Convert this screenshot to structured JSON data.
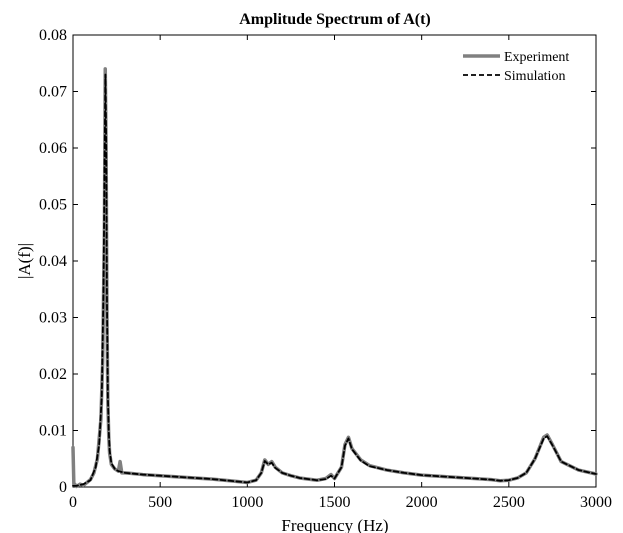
{
  "chart_data": {
    "type": "line",
    "title": "Amplitude Spectrum of A(t)",
    "xlabel": "Frequency (Hz)",
    "ylabel": "|A(f)|",
    "xlim": [
      0,
      3000
    ],
    "ylim": [
      0,
      0.08
    ],
    "xticks": [
      "0",
      "500",
      "1000",
      "1500",
      "2000",
      "2500",
      "3000"
    ],
    "yticks": [
      "0",
      "0.01",
      "0.02",
      "0.03",
      "0.04",
      "0.05",
      "0.06",
      "0.07",
      "0.08"
    ],
    "grid": false,
    "legend_position": "top-right",
    "series": [
      {
        "name": "Experiment",
        "color": "#808080",
        "style": "solid",
        "x": [
          0,
          5,
          10,
          20,
          40,
          60,
          80,
          100,
          120,
          140,
          160,
          170,
          180,
          185,
          190,
          195,
          200,
          205,
          210,
          220,
          240,
          260,
          270,
          280,
          300,
          400,
          500,
          600,
          700,
          800,
          900,
          1000,
          1050,
          1080,
          1100,
          1120,
          1140,
          1160,
          1200,
          1250,
          1300,
          1400,
          1450,
          1480,
          1500,
          1540,
          1560,
          1580,
          1600,
          1650,
          1700,
          1800,
          1900,
          2000,
          2100,
          2200,
          2300,
          2400,
          2450,
          2500,
          2550,
          2600,
          2650,
          2700,
          2720,
          2750,
          2800,
          2900,
          3000
        ],
        "y": [
          0.007,
          0.0003,
          0.0005,
          0.0001,
          0.0005,
          0.0003,
          0.0008,
          0.0013,
          0.0025,
          0.005,
          0.012,
          0.022,
          0.045,
          0.074,
          0.06,
          0.03,
          0.015,
          0.009,
          0.006,
          0.004,
          0.0032,
          0.0028,
          0.0045,
          0.0025,
          0.0025,
          0.0022,
          0.002,
          0.0018,
          0.0016,
          0.0014,
          0.0011,
          0.0008,
          0.0012,
          0.0025,
          0.0048,
          0.004,
          0.0045,
          0.0035,
          0.0025,
          0.002,
          0.0016,
          0.0012,
          0.0015,
          0.0022,
          0.0015,
          0.0035,
          0.0075,
          0.0088,
          0.0068,
          0.0048,
          0.0038,
          0.003,
          0.0025,
          0.0021,
          0.0019,
          0.0017,
          0.0015,
          0.0013,
          0.0011,
          0.0012,
          0.0016,
          0.0025,
          0.005,
          0.0088,
          0.0092,
          0.0075,
          0.0045,
          0.003,
          0.0023
        ]
      },
      {
        "name": "Simulation",
        "color": "#000000",
        "style": "dashed",
        "x": [
          0,
          20,
          60,
          100,
          130,
          150,
          165,
          175,
          182,
          186,
          190,
          195,
          200,
          205,
          210,
          220,
          240,
          260,
          300,
          400,
          500,
          600,
          700,
          800,
          900,
          1000,
          1050,
          1080,
          1100,
          1120,
          1140,
          1160,
          1200,
          1250,
          1300,
          1400,
          1450,
          1480,
          1500,
          1540,
          1560,
          1580,
          1600,
          1650,
          1700,
          1800,
          1900,
          2000,
          2100,
          2200,
          2300,
          2400,
          2450,
          2500,
          2550,
          2600,
          2650,
          2700,
          2720,
          2750,
          2800,
          2900,
          3000
        ],
        "y": [
          0.0002,
          0.0002,
          0.0005,
          0.0012,
          0.0035,
          0.0075,
          0.016,
          0.035,
          0.06,
          0.073,
          0.062,
          0.032,
          0.016,
          0.01,
          0.0065,
          0.0042,
          0.0032,
          0.0028,
          0.0025,
          0.0022,
          0.002,
          0.0018,
          0.0016,
          0.0014,
          0.0011,
          0.0008,
          0.0012,
          0.0025,
          0.0046,
          0.004,
          0.0043,
          0.0034,
          0.0025,
          0.002,
          0.0016,
          0.0012,
          0.0014,
          0.002,
          0.0015,
          0.0035,
          0.0073,
          0.0086,
          0.0067,
          0.0047,
          0.0037,
          0.003,
          0.0025,
          0.0021,
          0.0019,
          0.0017,
          0.0015,
          0.0013,
          0.0011,
          0.0012,
          0.0016,
          0.0025,
          0.005,
          0.0086,
          0.009,
          0.0074,
          0.0045,
          0.003,
          0.0023
        ]
      }
    ]
  }
}
